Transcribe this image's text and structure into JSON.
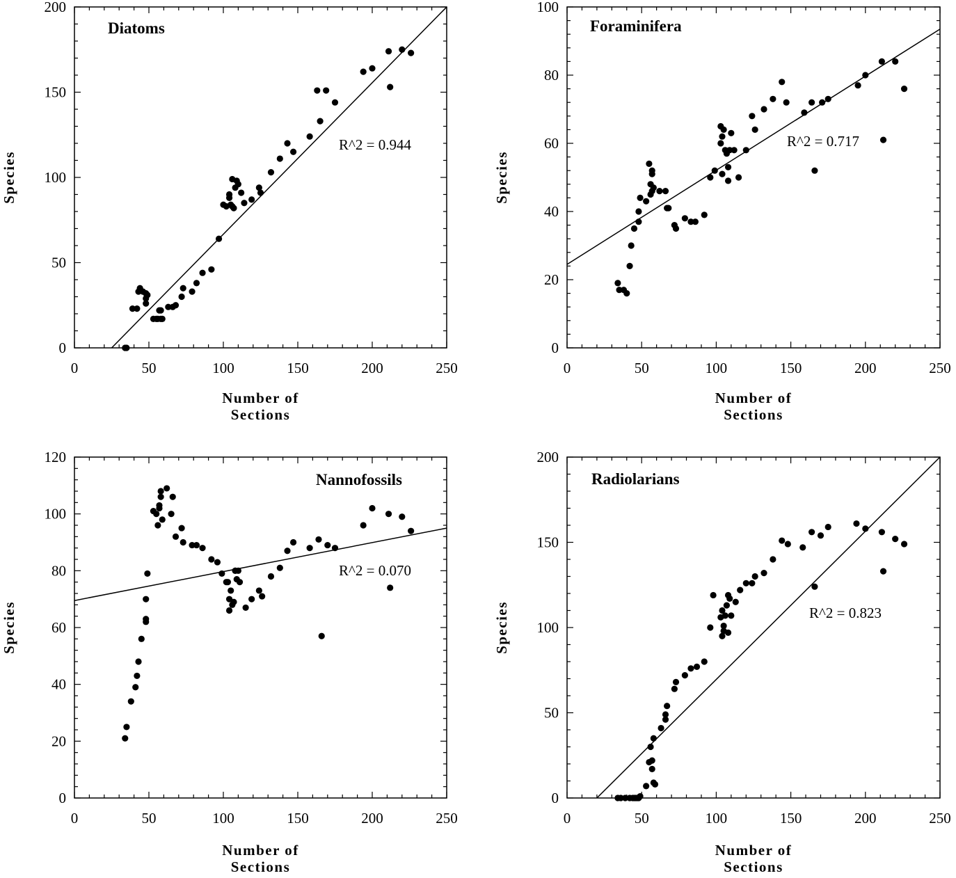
{
  "chart_data": [
    {
      "type": "scatter",
      "title": "Diatoms",
      "annotation": "R^2 = 0.944",
      "xlabel": "Number of Sections",
      "xlabel_lines": [
        "Number of",
        "Sections"
      ],
      "ylabel": "Species",
      "xlim": [
        0,
        250
      ],
      "ylim": [
        0,
        200
      ],
      "xticks": [
        0,
        50,
        100,
        150,
        200,
        250
      ],
      "yticks": [
        0,
        50,
        100,
        150,
        200
      ],
      "grid": false,
      "legend": "none",
      "trendline": {
        "x": [
          25,
          250
        ],
        "y": [
          0,
          200
        ]
      },
      "x": [
        34,
        35,
        39,
        42,
        43,
        44,
        46,
        48,
        48,
        48,
        49,
        53,
        55,
        56,
        57,
        58,
        58,
        59,
        63,
        66,
        68,
        72,
        73,
        79,
        82,
        86,
        92,
        97,
        100,
        102,
        104,
        104,
        105,
        106,
        106,
        107,
        108,
        109,
        110,
        112,
        114,
        119,
        124,
        125,
        132,
        138,
        143,
        147,
        158,
        163,
        165,
        169,
        175,
        194,
        200,
        211,
        212,
        220,
        226
      ],
      "y": [
        0,
        0,
        23,
        23,
        33,
        35,
        33,
        32,
        29,
        26,
        31,
        17,
        17,
        17,
        22,
        17,
        22,
        17,
        24,
        24,
        25,
        30,
        35,
        33,
        38,
        44,
        46,
        64,
        84,
        83,
        88,
        90,
        84,
        83,
        99,
        82,
        94,
        98,
        96,
        91,
        85,
        87,
        94,
        91,
        103,
        111,
        120,
        115,
        124,
        151,
        133,
        151,
        144,
        162,
        164,
        174,
        153,
        175,
        173
      ]
    },
    {
      "type": "scatter",
      "title": "Foraminifera",
      "annotation": "R^2 = 0.717",
      "xlabel": "Number of Sections",
      "xlabel_lines": [
        "Number of",
        "Sections"
      ],
      "ylabel": "Species",
      "xlim": [
        0,
        250
      ],
      "ylim": [
        0,
        100
      ],
      "xticks": [
        0,
        50,
        100,
        150,
        200,
        250
      ],
      "yticks": [
        0,
        20,
        40,
        60,
        80,
        100
      ],
      "grid": false,
      "legend": "none",
      "trendline": {
        "x": [
          0,
          250
        ],
        "y": [
          24.5,
          93.5
        ]
      },
      "x": [
        34,
        35,
        38,
        40,
        42,
        43,
        45,
        48,
        48,
        49,
        53,
        55,
        56,
        56,
        57,
        57,
        57,
        58,
        62,
        66,
        67,
        68,
        72,
        73,
        79,
        83,
        86,
        92,
        96,
        99,
        103,
        103,
        104,
        104,
        105,
        106,
        107,
        108,
        108,
        109,
        110,
        112,
        115,
        120,
        124,
        126,
        132,
        138,
        144,
        147,
        159,
        164,
        166,
        171,
        175,
        195,
        200,
        211,
        212,
        220,
        226
      ],
      "y": [
        19,
        17,
        17,
        16,
        24,
        30,
        35,
        37,
        40,
        44,
        43,
        54,
        48,
        45,
        52,
        51,
        46,
        47,
        46,
        46,
        41,
        41,
        36,
        35,
        38,
        37,
        37,
        39,
        50,
        52,
        65,
        60,
        62,
        51,
        64,
        58,
        57,
        49,
        53,
        58,
        63,
        58,
        50,
        58,
        68,
        64,
        70,
        73,
        78,
        72,
        69,
        72,
        52,
        72,
        73,
        77,
        80,
        84,
        61,
        84,
        76
      ]
    },
    {
      "type": "scatter",
      "title": "Nannofossils",
      "annotation": "R^2 = 0.070",
      "xlabel": "Number of Sections",
      "xlabel_lines": [
        "Number of",
        "Sections"
      ],
      "ylabel": "Species",
      "xlim": [
        0,
        250
      ],
      "ylim": [
        0,
        120
      ],
      "xticks": [
        0,
        50,
        100,
        150,
        200,
        250
      ],
      "yticks": [
        0,
        20,
        40,
        60,
        80,
        100,
        120
      ],
      "grid": false,
      "legend": "none",
      "trendline": {
        "x": [
          0,
          250
        ],
        "y": [
          69.5,
          95
        ]
      },
      "x": [
        34,
        35,
        38,
        41,
        42,
        43,
        45,
        48,
        48,
        48,
        49,
        53,
        55,
        56,
        57,
        57,
        58,
        58,
        59,
        62,
        65,
        66,
        68,
        72,
        73,
        79,
        82,
        86,
        92,
        96,
        99,
        102,
        103,
        104,
        104,
        105,
        106,
        107,
        108,
        108,
        109,
        110,
        111,
        115,
        119,
        124,
        126,
        132,
        138,
        143,
        147,
        158,
        164,
        166,
        170,
        175,
        194,
        200,
        211,
        212,
        220,
        226
      ],
      "y": [
        21,
        25,
        34,
        39,
        43,
        48,
        56,
        62,
        63,
        70,
        79,
        101,
        100,
        96,
        102,
        103,
        106,
        108,
        98,
        109,
        100,
        106,
        92,
        95,
        90,
        89,
        89,
        88,
        84,
        83,
        79,
        76,
        76,
        70,
        66,
        73,
        68,
        69,
        80,
        80,
        77,
        80,
        76,
        67,
        70,
        73,
        71,
        78,
        81,
        87,
        90,
        88,
        91,
        57,
        89,
        88,
        96,
        102,
        100,
        74,
        99,
        94
      ]
    },
    {
      "type": "scatter",
      "title": "Radiolarians",
      "annotation": "R^2 = 0.823",
      "xlabel": "Number of Sections",
      "xlabel_lines": [
        "Number of",
        "Sections"
      ],
      "ylabel": "Species",
      "xlim": [
        0,
        250
      ],
      "ylim": [
        0,
        200
      ],
      "xticks": [
        0,
        50,
        100,
        150,
        200,
        250
      ],
      "yticks": [
        0,
        50,
        100,
        150,
        200
      ],
      "grid": false,
      "legend": "none",
      "trendline": {
        "x": [
          20,
          250
        ],
        "y": [
          0,
          200
        ]
      },
      "x": [
        34,
        36,
        39,
        42,
        44,
        45,
        46,
        47,
        48,
        49,
        53,
        55,
        56,
        57,
        57,
        58,
        58,
        59,
        63,
        66,
        66,
        67,
        72,
        73,
        79,
        83,
        87,
        92,
        96,
        98,
        103,
        104,
        104,
        105,
        105,
        106,
        107,
        108,
        108,
        109,
        110,
        113,
        116,
        120,
        124,
        126,
        132,
        138,
        144,
        148,
        158,
        164,
        166,
        170,
        175,
        194,
        200,
        211,
        212,
        220,
        226
      ],
      "y": [
        0,
        0,
        0,
        0,
        0,
        0,
        0,
        0,
        0,
        1,
        7,
        21,
        30,
        22,
        17,
        35,
        9,
        8,
        41,
        46,
        49,
        54,
        64,
        68,
        72,
        76,
        77,
        80,
        100,
        119,
        106,
        110,
        95,
        98,
        101,
        107,
        113,
        119,
        97,
        117,
        107,
        115,
        122,
        126,
        126,
        130,
        132,
        140,
        151,
        149,
        147,
        156,
        124,
        154,
        159,
        161,
        158,
        156,
        133,
        152,
        149
      ]
    }
  ]
}
